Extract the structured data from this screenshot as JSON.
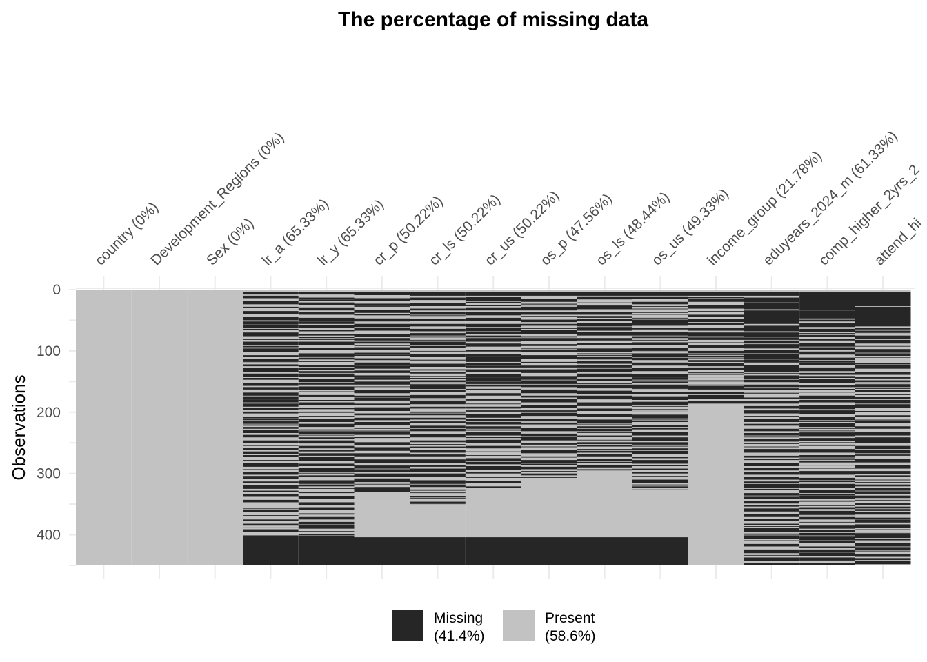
{
  "chart_data": {
    "type": "heatmap",
    "title": "The percentage of missing data",
    "ylabel": "Observations",
    "ylim": [
      0,
      450
    ],
    "yticks": [
      0,
      100,
      200,
      300,
      400
    ],
    "n_observations": 450,
    "columns": [
      {
        "label": "country (0%)",
        "missing_pct": 0
      },
      {
        "label": "Development_Regions (0%)",
        "missing_pct": 0
      },
      {
        "label": "Sex (0%)",
        "missing_pct": 0
      },
      {
        "label": "lr_a (65.33%)",
        "missing_pct": 65.33
      },
      {
        "label": "lr_y (65.33%)",
        "missing_pct": 65.33
      },
      {
        "label": "cr_p (50.22%)",
        "missing_pct": 50.22
      },
      {
        "label": "cr_ls (50.22%)",
        "missing_pct": 50.22
      },
      {
        "label": "cr_us (50.22%)",
        "missing_pct": 50.22
      },
      {
        "label": "os_p (47.56%)",
        "missing_pct": 47.56
      },
      {
        "label": "os_ls (48.44%)",
        "missing_pct": 48.44
      },
      {
        "label": "os_us (49.33%)",
        "missing_pct": 49.33
      },
      {
        "label": "income_group (21.78%)",
        "missing_pct": 21.78
      },
      {
        "label": "eduyears_2024_m (61.33%)",
        "missing_pct": 61.33
      },
      {
        "label": "comp_higher_2yrs_2",
        "missing_pct": 60
      },
      {
        "label": "attend_hi",
        "missing_pct": 60
      }
    ],
    "legend": {
      "position": "bottom",
      "items": [
        {
          "label": "Missing",
          "pct": "(41.4%)",
          "color": "#262626"
        },
        {
          "label": "Present",
          "pct": "(58.6%)",
          "color": "#c2c2c2"
        }
      ]
    },
    "grid": true
  }
}
